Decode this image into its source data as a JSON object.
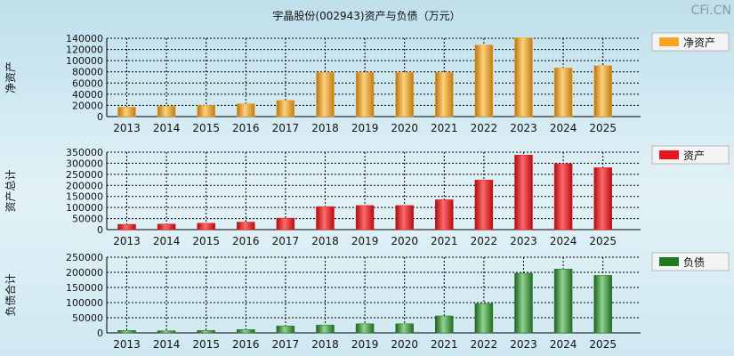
{
  "title": "宇晶股份(002943)资产与负债（万元）",
  "watermark": "CFi.CN",
  "colors": {
    "net_assets": "#f5a623",
    "assets": "#e8141b",
    "liabilities": "#1e7a1e"
  },
  "chart_data": [
    {
      "type": "bar",
      "series_name": "净资产",
      "ylabel": "净资产",
      "categories": [
        "2013",
        "2014",
        "2015",
        "2016",
        "2017",
        "2018",
        "2019",
        "2020",
        "2021",
        "2022",
        "2023",
        "2024",
        "2025"
      ],
      "values": [
        17000,
        18500,
        20000,
        23000,
        29000,
        79000,
        79000,
        79000,
        79000,
        128000,
        141000,
        87000,
        91000
      ],
      "ylim": [
        0,
        140000
      ],
      "yticks": [
        0,
        20000,
        40000,
        60000,
        80000,
        100000,
        120000,
        140000
      ]
    },
    {
      "type": "bar",
      "series_name": "资产",
      "ylabel": "资产总计",
      "categories": [
        "2013",
        "2014",
        "2015",
        "2016",
        "2017",
        "2018",
        "2019",
        "2020",
        "2021",
        "2022",
        "2023",
        "2024",
        "2025"
      ],
      "values": [
        24000,
        25000,
        29000,
        34000,
        52000,
        104000,
        109000,
        109000,
        135000,
        224000,
        337000,
        298000,
        280000
      ],
      "ylim": [
        0,
        350000
      ],
      "yticks": [
        0,
        50000,
        100000,
        150000,
        200000,
        250000,
        300000,
        350000
      ]
    },
    {
      "type": "bar",
      "series_name": "负债",
      "ylabel": "负债合计",
      "categories": [
        "2013",
        "2014",
        "2015",
        "2016",
        "2017",
        "2018",
        "2019",
        "2020",
        "2021",
        "2022",
        "2023",
        "2024",
        "2025"
      ],
      "values": [
        8000,
        7000,
        8000,
        11000,
        23000,
        26000,
        30000,
        30000,
        56000,
        97000,
        197000,
        211000,
        190000
      ],
      "ylim": [
        0,
        250000
      ],
      "yticks": [
        0,
        50000,
        100000,
        150000,
        200000,
        250000
      ]
    }
  ]
}
